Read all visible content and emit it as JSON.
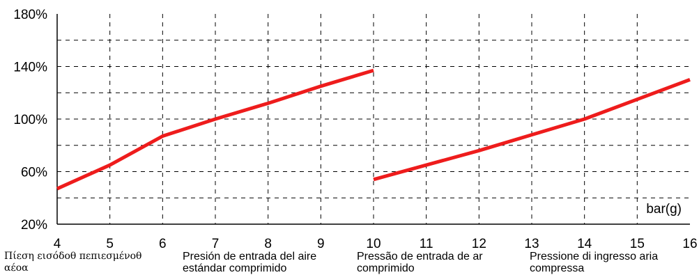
{
  "chart_data": {
    "type": "line",
    "xlim": [
      4,
      16
    ],
    "ylim": [
      20,
      180
    ],
    "x_ticks": [
      "4",
      "5",
      "6",
      "7",
      "8",
      "9",
      "10",
      "11",
      "12",
      "13",
      "14",
      "15",
      "16"
    ],
    "y_ticks": [
      "20%",
      "60%",
      "100%",
      "140%",
      "180%"
    ],
    "y_tick_values": [
      20,
      60,
      100,
      140,
      180
    ],
    "grid": true,
    "unit_label": "bar(g)",
    "line_color": "#ee1c1c",
    "series": [
      {
        "x": [
          4,
          5,
          6,
          7,
          8,
          9,
          10
        ],
        "y": [
          47,
          65,
          87,
          100,
          112,
          125,
          137
        ]
      },
      {
        "x": [
          10,
          11,
          12,
          13,
          14,
          15,
          16
        ],
        "y": [
          54,
          65,
          76,
          88,
          100,
          115,
          130
        ]
      }
    ]
  },
  "captions": [
    {
      "line1": "Πίεση εισόδοθ πεπιεσμένοθ",
      "line2": "αέοα"
    },
    {
      "line1": "Presión de entrada del aire",
      "line2": "estándar comprimido"
    },
    {
      "line1": "Pressão de entrada de ar",
      "line2": "comprimido"
    },
    {
      "line1": "Pressione di ingresso aria",
      "line2": "compressa"
    }
  ]
}
